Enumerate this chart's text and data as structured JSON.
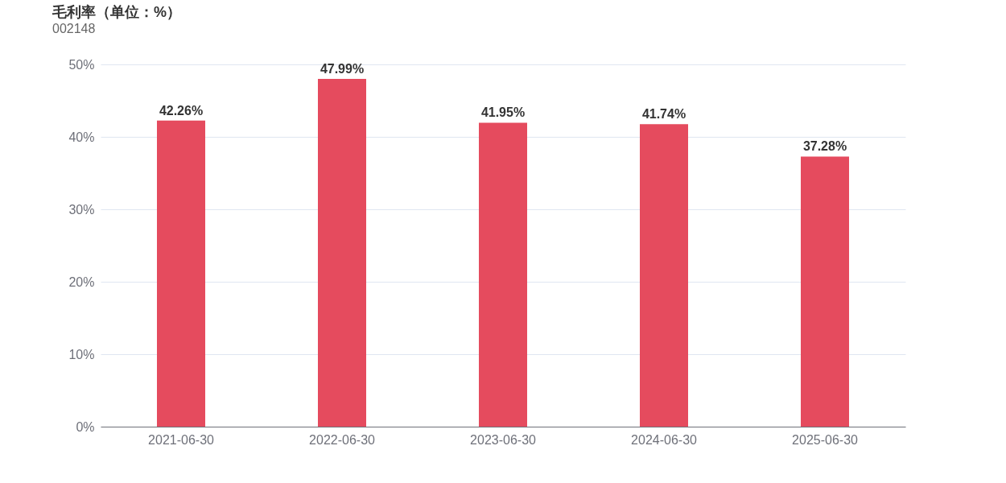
{
  "chart_data": {
    "type": "bar",
    "title": "毛利率（单位：%）",
    "subtitle": "002148",
    "categories": [
      "2021-06-30",
      "2022-06-30",
      "2023-06-30",
      "2024-06-30",
      "2025-06-30"
    ],
    "values": [
      42.26,
      47.99,
      41.95,
      41.74,
      37.28
    ],
    "value_labels": [
      "42.26%",
      "47.99%",
      "41.95%",
      "41.74%",
      "37.28%"
    ],
    "color": "#e54b5e",
    "ylim": [
      0,
      50
    ],
    "yticks": [
      {
        "value": 0,
        "label": "0%"
      },
      {
        "value": 10,
        "label": "10%"
      },
      {
        "value": 20,
        "label": "20%"
      },
      {
        "value": 30,
        "label": "30%"
      },
      {
        "value": 40,
        "label": "40%"
      },
      {
        "value": 50,
        "label": "50%"
      }
    ],
    "grid": "y"
  }
}
